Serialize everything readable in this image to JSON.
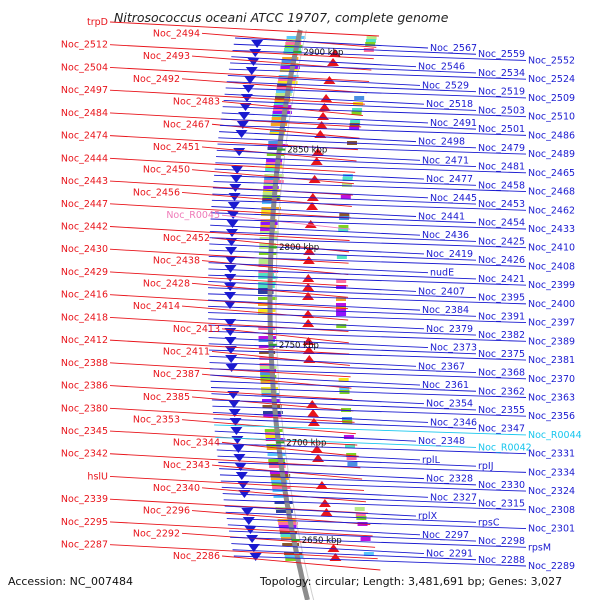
{
  "title": "Nitrosococcus oceani ATCC 19707, complete genome",
  "accession": "Accession: NC_007484",
  "topology": "Topology: circular; Length: 3,481,691 bp; Genes: 3,027",
  "colors": {
    "left_genes": "#e8141b",
    "right_genes": "#1a1ad0",
    "rna_pink": "#ef7ab8",
    "rna_cyan": "#18c6ee",
    "backbone": "#8c8c8c",
    "tick_mark": "#2ea02e"
  },
  "ticks": [
    "2900 kbp",
    "2850 kbp",
    "2800 kbp",
    "2750 kbp",
    "2700 kbp",
    "2650 kbp"
  ],
  "left_labels": [
    {
      "text": "trpD",
      "kind": "gene"
    },
    {
      "text": "Noc_2494",
      "kind": "gene"
    },
    {
      "text": "Noc_2512",
      "kind": "gene"
    },
    {
      "text": "Noc_2493",
      "kind": "gene"
    },
    {
      "text": "Noc_2504",
      "kind": "gene"
    },
    {
      "text": "Noc_2492",
      "kind": "gene"
    },
    {
      "text": "Noc_2497",
      "kind": "gene"
    },
    {
      "text": "Noc_2483",
      "kind": "gene"
    },
    {
      "text": "Noc_2484",
      "kind": "gene"
    },
    {
      "text": "Noc_2467",
      "kind": "gene"
    },
    {
      "text": "Noc_2474",
      "kind": "gene"
    },
    {
      "text": "Noc_2451",
      "kind": "gene"
    },
    {
      "text": "Noc_2444",
      "kind": "gene"
    },
    {
      "text": "Noc_2450",
      "kind": "gene"
    },
    {
      "text": "Noc_2443",
      "kind": "gene"
    },
    {
      "text": "Noc_2456",
      "kind": "gene"
    },
    {
      "text": "Noc_2447",
      "kind": "gene"
    },
    {
      "text": "Noc_R0045",
      "kind": "rna"
    },
    {
      "text": "Noc_2442",
      "kind": "gene"
    },
    {
      "text": "Noc_2452",
      "kind": "gene"
    },
    {
      "text": "Noc_2430",
      "kind": "gene"
    },
    {
      "text": "Noc_2438",
      "kind": "gene"
    },
    {
      "text": "Noc_2429",
      "kind": "gene"
    },
    {
      "text": "Noc_2428",
      "kind": "gene"
    },
    {
      "text": "Noc_2416",
      "kind": "gene"
    },
    {
      "text": "Noc_2414",
      "kind": "gene"
    },
    {
      "text": "Noc_2418",
      "kind": "gene"
    },
    {
      "text": "Noc_2413",
      "kind": "gene"
    },
    {
      "text": "Noc_2412",
      "kind": "gene"
    },
    {
      "text": "Noc_2411",
      "kind": "gene"
    },
    {
      "text": "Noc_2388",
      "kind": "gene"
    },
    {
      "text": "Noc_2387",
      "kind": "gene"
    },
    {
      "text": "Noc_2386",
      "kind": "gene"
    },
    {
      "text": "Noc_2385",
      "kind": "gene"
    },
    {
      "text": "Noc_2380",
      "kind": "gene"
    },
    {
      "text": "Noc_2353",
      "kind": "gene"
    },
    {
      "text": "Noc_2345",
      "kind": "gene"
    },
    {
      "text": "Noc_2344",
      "kind": "gene"
    },
    {
      "text": "Noc_2342",
      "kind": "gene"
    },
    {
      "text": "Noc_2343",
      "kind": "gene"
    },
    {
      "text": "hslU",
      "kind": "gene"
    },
    {
      "text": "Noc_2340",
      "kind": "gene"
    },
    {
      "text": "Noc_2339",
      "kind": "gene"
    },
    {
      "text": "Noc_2296",
      "kind": "gene"
    },
    {
      "text": "Noc_2295",
      "kind": "gene"
    },
    {
      "text": "Noc_2292",
      "kind": "gene"
    },
    {
      "text": "Noc_2287",
      "kind": "gene"
    },
    {
      "text": "Noc_2286",
      "kind": "gene"
    }
  ],
  "right_labels": [
    {
      "text": "Noc_2567",
      "kind": "gene"
    },
    {
      "text": "Noc_2559",
      "kind": "gene"
    },
    {
      "text": "Noc_2552",
      "kind": "gene"
    },
    {
      "text": "Noc_2546",
      "kind": "gene"
    },
    {
      "text": "Noc_2534",
      "kind": "gene"
    },
    {
      "text": "Noc_2524",
      "kind": "gene"
    },
    {
      "text": "Noc_2529",
      "kind": "gene"
    },
    {
      "text": "Noc_2519",
      "kind": "gene"
    },
    {
      "text": "Noc_2509",
      "kind": "gene"
    },
    {
      "text": "Noc_2518",
      "kind": "gene"
    },
    {
      "text": "Noc_2503",
      "kind": "gene"
    },
    {
      "text": "Noc_2510",
      "kind": "gene"
    },
    {
      "text": "Noc_2491",
      "kind": "gene"
    },
    {
      "text": "Noc_2501",
      "kind": "gene"
    },
    {
      "text": "Noc_2486",
      "kind": "gene"
    },
    {
      "text": "Noc_2498",
      "kind": "gene"
    },
    {
      "text": "Noc_2479",
      "kind": "gene"
    },
    {
      "text": "Noc_2489",
      "kind": "gene"
    },
    {
      "text": "Noc_2471",
      "kind": "gene"
    },
    {
      "text": "Noc_2481",
      "kind": "gene"
    },
    {
      "text": "Noc_2465",
      "kind": "gene"
    },
    {
      "text": "Noc_2477",
      "kind": "gene"
    },
    {
      "text": "Noc_2458",
      "kind": "gene"
    },
    {
      "text": "Noc_2468",
      "kind": "gene"
    },
    {
      "text": "Noc_2445",
      "kind": "gene"
    },
    {
      "text": "Noc_2453",
      "kind": "gene"
    },
    {
      "text": "Noc_2462",
      "kind": "gene"
    },
    {
      "text": "Noc_2441",
      "kind": "gene"
    },
    {
      "text": "Noc_2454",
      "kind": "gene"
    },
    {
      "text": "Noc_2433",
      "kind": "gene"
    },
    {
      "text": "Noc_2436",
      "kind": "gene"
    },
    {
      "text": "Noc_2425",
      "kind": "gene"
    },
    {
      "text": "Noc_2410",
      "kind": "gene"
    },
    {
      "text": "Noc_2419",
      "kind": "gene"
    },
    {
      "text": "Noc_2426",
      "kind": "gene"
    },
    {
      "text": "Noc_2408",
      "kind": "gene"
    },
    {
      "text": "nudE",
      "kind": "gene"
    },
    {
      "text": "Noc_2421",
      "kind": "gene"
    },
    {
      "text": "Noc_2399",
      "kind": "gene"
    },
    {
      "text": "Noc_2407",
      "kind": "gene"
    },
    {
      "text": "Noc_2395",
      "kind": "gene"
    },
    {
      "text": "Noc_2400",
      "kind": "gene"
    },
    {
      "text": "Noc_2384",
      "kind": "gene"
    },
    {
      "text": "Noc_2391",
      "kind": "gene"
    },
    {
      "text": "Noc_2397",
      "kind": "gene"
    },
    {
      "text": "Noc_2379",
      "kind": "gene"
    },
    {
      "text": "Noc_2382",
      "kind": "gene"
    },
    {
      "text": "Noc_2389",
      "kind": "gene"
    },
    {
      "text": "Noc_2373",
      "kind": "gene"
    },
    {
      "text": "Noc_2375",
      "kind": "gene"
    },
    {
      "text": "Noc_2381",
      "kind": "gene"
    },
    {
      "text": "Noc_2367",
      "kind": "gene"
    },
    {
      "text": "Noc_2368",
      "kind": "gene"
    },
    {
      "text": "Noc_2370",
      "kind": "gene"
    },
    {
      "text": "Noc_2361",
      "kind": "gene"
    },
    {
      "text": "Noc_2362",
      "kind": "gene"
    },
    {
      "text": "Noc_2363",
      "kind": "gene"
    },
    {
      "text": "Noc_2354",
      "kind": "gene"
    },
    {
      "text": "Noc_2355",
      "kind": "gene"
    },
    {
      "text": "Noc_2356",
      "kind": "gene"
    },
    {
      "text": "Noc_2346",
      "kind": "gene"
    },
    {
      "text": "Noc_2347",
      "kind": "gene"
    },
    {
      "text": "Noc_R0044",
      "kind": "rna"
    },
    {
      "text": "Noc_2348",
      "kind": "gene"
    },
    {
      "text": "Noc_R0042",
      "kind": "rna"
    },
    {
      "text": "Noc_2331",
      "kind": "gene"
    },
    {
      "text": "rplL",
      "kind": "gene"
    },
    {
      "text": "rpIJ",
      "kind": "gene"
    },
    {
      "text": "Noc_2334",
      "kind": "gene"
    },
    {
      "text": "Noc_2328",
      "kind": "gene"
    },
    {
      "text": "Noc_2330",
      "kind": "gene"
    },
    {
      "text": "Noc_2324",
      "kind": "gene"
    },
    {
      "text": "Noc_2327",
      "kind": "gene"
    },
    {
      "text": "Noc_2315",
      "kind": "gene"
    },
    {
      "text": "Noc_2308",
      "kind": "gene"
    },
    {
      "text": "rplX",
      "kind": "gene"
    },
    {
      "text": "rpsC",
      "kind": "gene"
    },
    {
      "text": "Noc_2301",
      "kind": "gene"
    },
    {
      "text": "Noc_2297",
      "kind": "gene"
    },
    {
      "text": "Noc_2298",
      "kind": "gene"
    },
    {
      "text": "rpsM",
      "kind": "gene"
    },
    {
      "text": "Noc_2291",
      "kind": "gene"
    },
    {
      "text": "Noc_2288",
      "kind": "gene"
    },
    {
      "text": "Noc_2289",
      "kind": "gene"
    }
  ]
}
